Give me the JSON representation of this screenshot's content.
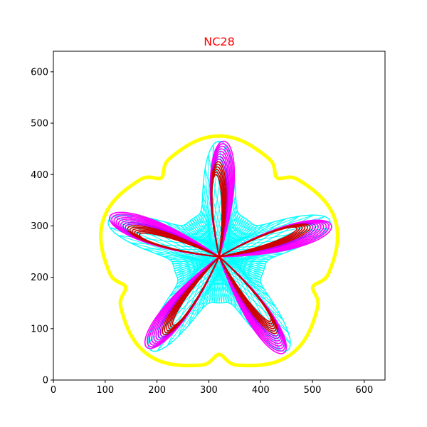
{
  "chart_data": {
    "type": "line",
    "title": "NC28",
    "title_color": "#ff0000",
    "xlabel": "",
    "ylabel": "",
    "xlim": [
      0,
      640
    ],
    "ylim": [
      0,
      640
    ],
    "x_ticks": [
      0,
      100,
      200,
      300,
      400,
      500,
      600
    ],
    "y_ticks": [
      0,
      100,
      200,
      300,
      400,
      500,
      600
    ],
    "x_tick_labels": [
      "0",
      "100",
      "200",
      "300",
      "400",
      "500",
      "600"
    ],
    "y_tick_labels": [
      "0",
      "100",
      "200",
      "300",
      "400",
      "500",
      "600"
    ],
    "grid": false,
    "legend": "none",
    "colors": {
      "outline": "#ffff00",
      "star": "#00ffff",
      "petals_outer": "#ff00ff",
      "petals_mid": "#bf00ff",
      "petals_inner": "#cc0000"
    },
    "shapes": {
      "center": [
        320,
        240
      ],
      "petal_count": 5,
      "outline_radius_range": [
        210,
        235
      ],
      "outline_notch_depth": 20,
      "petal_length_range": [
        160,
        225
      ],
      "petal_loop_count": 14,
      "star_outer_radius": 225,
      "star_inner_radius": 90
    }
  }
}
